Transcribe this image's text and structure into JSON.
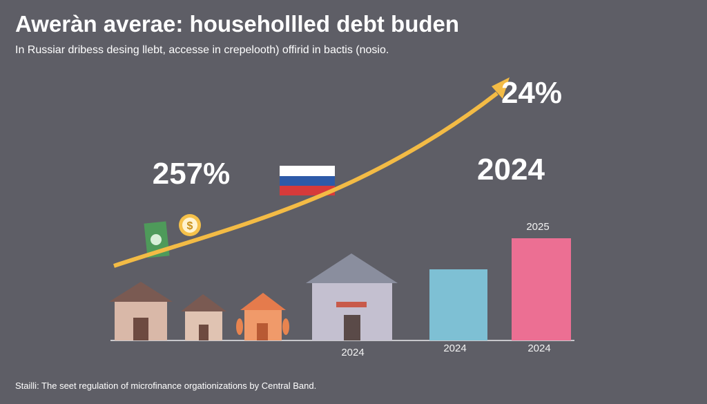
{
  "header": {
    "title": "Aweràn averae: househollled debt buden",
    "subtitle": "In Russiar dribess desing llebt, accesse in crepelooth) offirid in bactis (nosio."
  },
  "callouts": [
    "257%",
    "2024",
    "24%",
    "2025"
  ],
  "labels": [
    "2024",
    "2024",
    "2024"
  ],
  "source": "Stailli: The seet regulation of microfinance orgationizations by Central Band."
}
